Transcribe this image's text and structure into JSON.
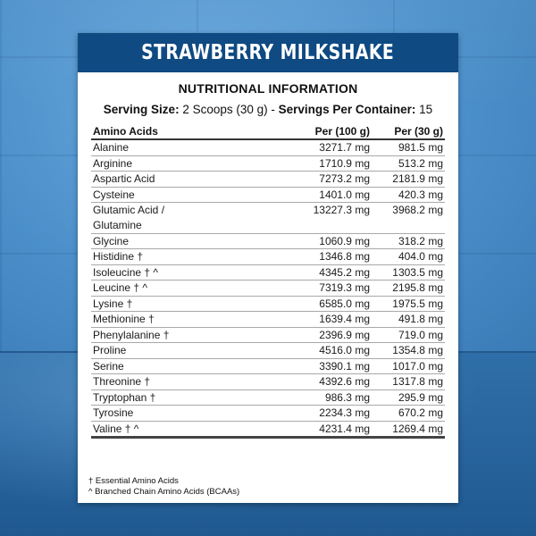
{
  "label": {
    "title": "STRAWBERRY MILKSHAKE",
    "section_title": "NUTRITIONAL INFORMATION",
    "serving": {
      "size_label": "Serving Size:",
      "size_value": " 2 Scoops (30 g)  -  ",
      "per_container_label": "Servings Per Container:",
      "per_container_value": " 15"
    },
    "colors": {
      "header_bg": "#0f4a82",
      "header_text": "#ffffff",
      "background": "#4a8fc8"
    }
  },
  "table": {
    "headers": {
      "name": "Amino Acids",
      "per100": "Per (100 g)",
      "per30": "Per  (30 g)"
    },
    "rows": [
      {
        "name": "Alanine",
        "per100": "3271.7 mg",
        "per30": "981.5 mg"
      },
      {
        "name": "Arginine",
        "per100": "1710.9 mg",
        "per30": "513.2 mg"
      },
      {
        "name": "Aspartic Acid",
        "per100": "7273.2 mg",
        "per30": "2181.9 mg"
      },
      {
        "name": "Cysteine",
        "per100": "1401.0 mg",
        "per30": "420.3 mg"
      },
      {
        "name": "Glutamic Acid /",
        "name2": "Glutamine",
        "per100": "13227.3 mg",
        "per30": "3968.2 mg"
      },
      {
        "name": "Glycine",
        "per100": "1060.9 mg",
        "per30": "318.2 mg"
      },
      {
        "name": "Histidine †",
        "per100": "1346.8 mg",
        "per30": "404.0 mg"
      },
      {
        "name": "Isoleucine † ^",
        "per100": "4345.2 mg",
        "per30": "1303.5 mg"
      },
      {
        "name": "Leucine † ^",
        "per100": "7319.3 mg",
        "per30": "2195.8 mg"
      },
      {
        "name": "Lysine †",
        "per100": "6585.0 mg",
        "per30": "1975.5 mg"
      },
      {
        "name": "Methionine †",
        "per100": "1639.4 mg",
        "per30": "491.8 mg"
      },
      {
        "name": "Phenylalanine †",
        "per100": "2396.9 mg",
        "per30": "719.0 mg"
      },
      {
        "name": "Proline",
        "per100": "4516.0 mg",
        "per30": "1354.8 mg"
      },
      {
        "name": "Serine",
        "per100": "3390.1 mg",
        "per30": "1017.0 mg"
      },
      {
        "name": "Threonine †",
        "per100": "4392.6 mg",
        "per30": "1317.8 mg"
      },
      {
        "name": "Tryptophan †",
        "per100": "986.3 mg",
        "per30": "295.9 mg"
      },
      {
        "name": "Tyrosine",
        "per100": "2234.3 mg",
        "per30": "670.2 mg"
      },
      {
        "name": "Valine † ^",
        "per100": "4231.4 mg",
        "per30": "1269.4 mg"
      }
    ]
  },
  "footnotes": {
    "essential": "† Essential Amino Acids",
    "bcaa": "^ Branched Chain Amino Acids (BCAAs)"
  }
}
